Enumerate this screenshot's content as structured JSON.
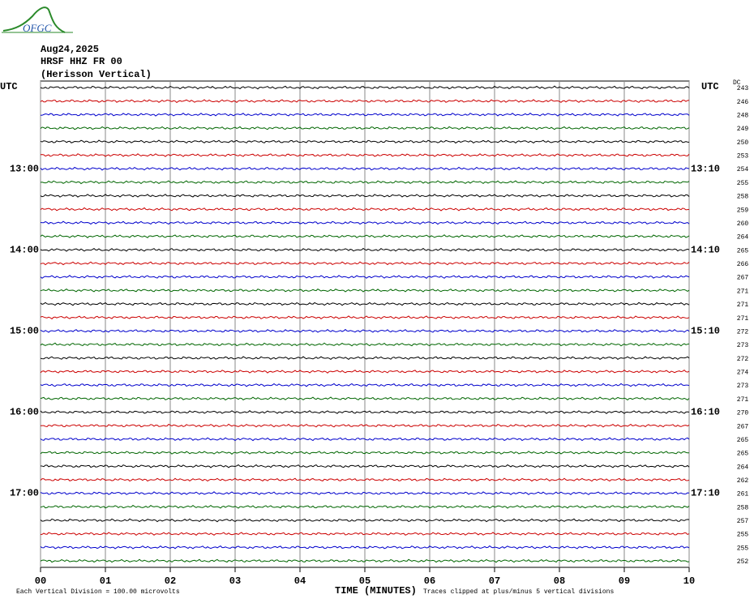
{
  "chart_data": {
    "type": "helicorder",
    "logo": "OFGC",
    "date": "Aug24,2025",
    "station": "HRSF HHZ FR 00",
    "title": "(Herisson Vertical)",
    "left_axis_label": "UTC",
    "right_axis_label": "UTC",
    "dc_label": "DC",
    "xlabel": "TIME (MINUTES)",
    "footer_left": "Each Vertical Division =  100.00 microvolts",
    "footer_right": "Traces clipped at plus/minus 5 vertical divisions",
    "xlim": [
      0,
      10
    ],
    "xticks": [
      {
        "value": 0,
        "label": "00"
      },
      {
        "value": 1,
        "label": "01"
      },
      {
        "value": 2,
        "label": "02"
      },
      {
        "value": 3,
        "label": "03"
      },
      {
        "value": 4,
        "label": "04"
      },
      {
        "value": 5,
        "label": "05"
      },
      {
        "value": 6,
        "label": "06"
      },
      {
        "value": 7,
        "label": "07"
      },
      {
        "value": 8,
        "label": "08"
      },
      {
        "value": 9,
        "label": "09"
      },
      {
        "value": 10,
        "label": "10"
      }
    ],
    "grid": true,
    "trace_colors": [
      "#000000",
      "#cc0000",
      "#0000cc",
      "#006600"
    ],
    "left_labels": [
      null,
      null,
      null,
      null,
      null,
      null,
      "13:00",
      null,
      null,
      null,
      null,
      null,
      "14:00",
      null,
      null,
      null,
      null,
      null,
      "15:00",
      null,
      null,
      null,
      null,
      null,
      "16:00",
      null,
      null,
      null,
      null,
      null,
      "17:00",
      null,
      null,
      null,
      null,
      null
    ],
    "right_labels": [
      null,
      null,
      null,
      null,
      null,
      null,
      "13:10",
      null,
      null,
      null,
      null,
      null,
      "14:10",
      null,
      null,
      null,
      null,
      null,
      "15:10",
      null,
      null,
      null,
      null,
      null,
      "16:10",
      null,
      null,
      null,
      null,
      null,
      "17:10",
      null,
      null,
      null,
      null,
      null
    ],
    "dc": [
      243,
      246,
      248,
      249,
      250,
      253,
      254,
      255,
      258,
      259,
      260,
      264,
      265,
      266,
      267,
      271,
      271,
      271,
      272,
      273,
      272,
      274,
      273,
      271,
      270,
      267,
      265,
      265,
      264,
      262,
      261,
      258,
      257,
      255,
      255,
      252
    ]
  }
}
